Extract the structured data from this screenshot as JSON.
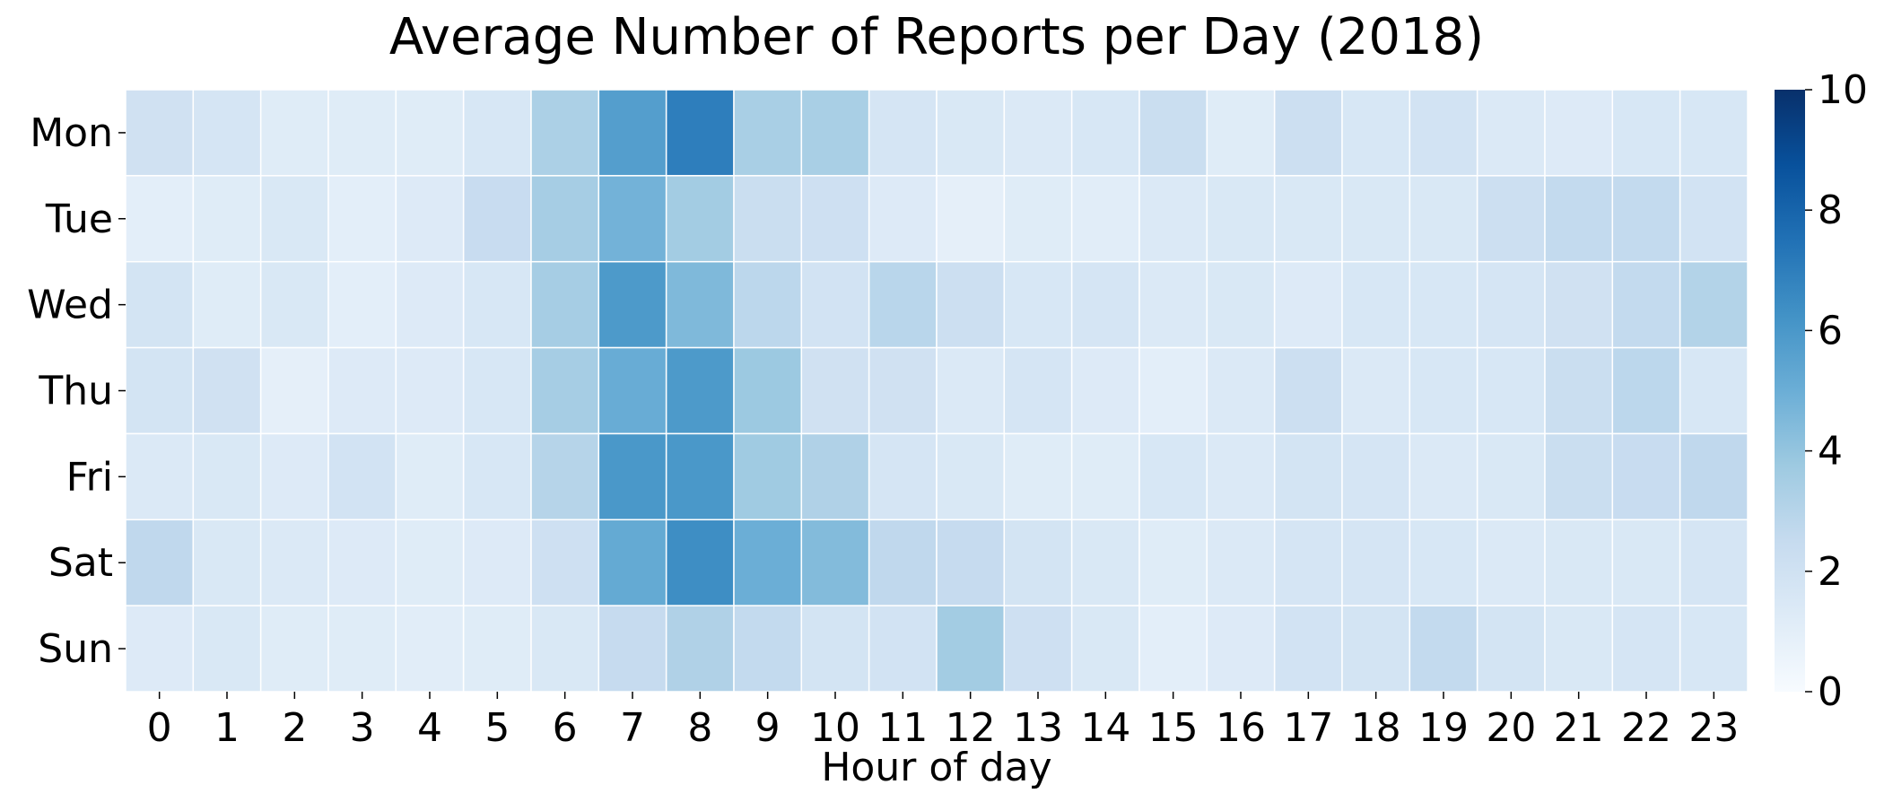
{
  "chart_data": {
    "type": "heatmap",
    "title": "Average Number of Reports per Day (2018)",
    "xlabel": "Hour of day",
    "ylabel": "",
    "x_categories": [
      "0",
      "1",
      "2",
      "3",
      "4",
      "5",
      "6",
      "7",
      "8",
      "9",
      "10",
      "11",
      "12",
      "13",
      "14",
      "15",
      "16",
      "17",
      "18",
      "19",
      "20",
      "21",
      "22",
      "23"
    ],
    "y_categories": [
      "Mon",
      "Tue",
      "Wed",
      "Thu",
      "Fri",
      "Sat",
      "Sun"
    ],
    "values": [
      [
        2.0,
        1.7,
        1.2,
        1.2,
        1.2,
        1.6,
        3.3,
        5.7,
        7.0,
        3.4,
        3.4,
        1.7,
        1.5,
        1.4,
        1.6,
        2.3,
        1.2,
        2.2,
        1.6,
        1.9,
        1.4,
        1.3,
        1.6,
        1.6
      ],
      [
        1.0,
        1.2,
        1.5,
        1.0,
        1.3,
        2.4,
        3.5,
        4.8,
        3.6,
        2.3,
        2.1,
        1.3,
        0.9,
        1.2,
        1.1,
        1.4,
        1.5,
        1.5,
        1.5,
        1.5,
        2.2,
        2.6,
        2.6,
        1.9
      ],
      [
        1.8,
        1.2,
        1.5,
        1.0,
        1.3,
        1.6,
        3.5,
        5.9,
        4.5,
        2.8,
        1.9,
        2.9,
        2.2,
        1.6,
        1.7,
        1.4,
        1.5,
        1.3,
        1.6,
        1.6,
        1.7,
        2.0,
        2.6,
        3.1
      ],
      [
        1.8,
        2.0,
        0.9,
        1.3,
        1.3,
        1.6,
        3.5,
        5.1,
        5.9,
        3.8,
        2.0,
        2.0,
        1.4,
        1.7,
        1.3,
        1.0,
        1.4,
        2.2,
        1.4,
        1.6,
        1.6,
        2.3,
        2.8,
        1.6
      ],
      [
        1.4,
        1.5,
        1.3,
        1.9,
        1.2,
        1.6,
        3.0,
        6.0,
        6.0,
        3.7,
        3.2,
        1.7,
        1.5,
        1.2,
        1.2,
        1.6,
        1.4,
        1.8,
        1.7,
        1.4,
        1.5,
        2.3,
        2.4,
        2.7
      ],
      [
        2.7,
        1.5,
        1.4,
        1.3,
        1.2,
        1.3,
        2.1,
        5.2,
        6.4,
        5.0,
        4.4,
        2.7,
        2.5,
        1.8,
        1.5,
        1.2,
        1.4,
        1.7,
        1.7,
        1.6,
        1.4,
        1.5,
        1.5,
        1.7
      ],
      [
        1.3,
        1.5,
        1.2,
        1.2,
        1.1,
        1.2,
        1.5,
        2.5,
        3.2,
        2.6,
        1.8,
        1.9,
        3.6,
        2.1,
        1.5,
        1.0,
        1.3,
        1.9,
        1.8,
        2.6,
        1.8,
        1.5,
        1.7,
        1.6
      ]
    ],
    "colorbar": {
      "min": 0,
      "max": 10,
      "ticks": [
        "0",
        "2",
        "4",
        "6",
        "8",
        "10"
      ],
      "colormap": "Blues",
      "colors": [
        "#f7fbff",
        "#deebf7",
        "#c6dbef",
        "#9ecae1",
        "#6baed6",
        "#4292c6",
        "#2171b5",
        "#08519c",
        "#08306b"
      ]
    },
    "grid": false,
    "cell_border_color": "#ffffff"
  }
}
